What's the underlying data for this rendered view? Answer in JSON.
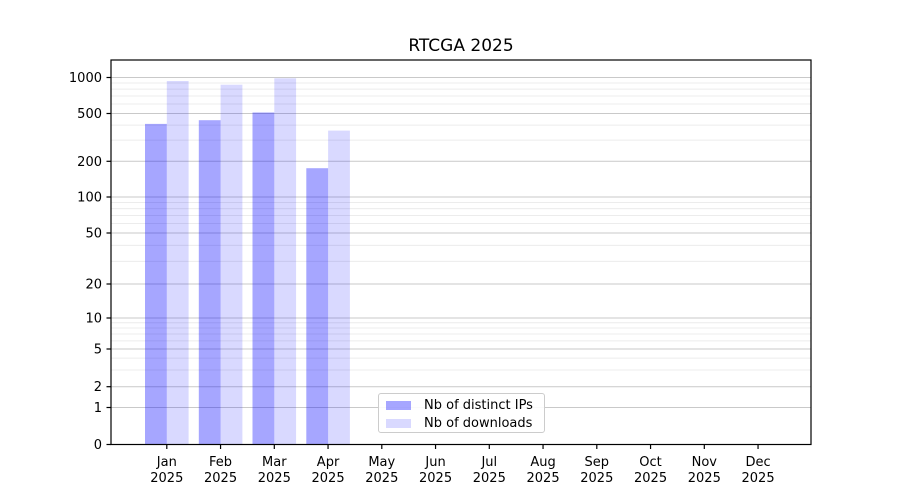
{
  "chart_data": {
    "type": "bar",
    "title": "RTCGA 2025",
    "categories": [
      "Jan",
      "Feb",
      "Mar",
      "Apr",
      "May",
      "Jun",
      "Jul",
      "Aug",
      "Sep",
      "Oct",
      "Nov",
      "Dec"
    ],
    "category_year": "2025",
    "series": [
      {
        "name": "Nb of distinct IPs",
        "color": "rgba(0,0,255,0.35)",
        "values": [
          410,
          440,
          510,
          175,
          0,
          0,
          0,
          0,
          0,
          0,
          0,
          0
        ]
      },
      {
        "name": "Nb of downloads",
        "color": "rgba(0,0,255,0.15)",
        "values": [
          935,
          870,
          985,
          360,
          0,
          0,
          0,
          0,
          0,
          0,
          0,
          0
        ]
      },
      {
        "name": "",
        "color": "",
        "values": []
      }
    ],
    "yscale": "symlog",
    "y_ticks": [
      0,
      1,
      2,
      5,
      10,
      20,
      50,
      100,
      200,
      500,
      1000
    ],
    "y_minor_ticks": [
      3,
      4,
      6,
      7,
      8,
      9,
      30,
      40,
      60,
      70,
      80,
      90,
      300,
      400,
      600,
      700,
      800,
      900
    ],
    "ylim": [
      0,
      1400
    ],
    "xlabel": "",
    "ylabel": "",
    "grid": {
      "major": true,
      "minor": true
    },
    "legend": {
      "position": "lower-center",
      "entries": [
        "Nb of distinct IPs",
        "Nb of downloads"
      ]
    },
    "colors": {
      "grid_major": "#c9c9c9",
      "grid_minor": "#ececec",
      "spine": "#000000"
    }
  }
}
